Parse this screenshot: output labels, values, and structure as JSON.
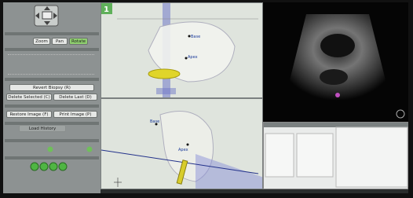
{
  "left_panel": {
    "view_buttons": [
      "Zoom",
      "Pan",
      "Rotate"
    ],
    "biopsy_button": "Revert Biopsy (R)",
    "delete_buttons": [
      "Delete Selected (C)",
      "Delete Last (D)"
    ],
    "image_buttons": [
      "Restore Image (F)",
      "Print Image (P)"
    ],
    "history_button": "Load History"
  },
  "views": {
    "top": {
      "index": "1",
      "labels": [
        "Base",
        "Apex"
      ]
    },
    "bottom": {
      "labels": [
        "Base",
        "Apex"
      ]
    }
  }
}
